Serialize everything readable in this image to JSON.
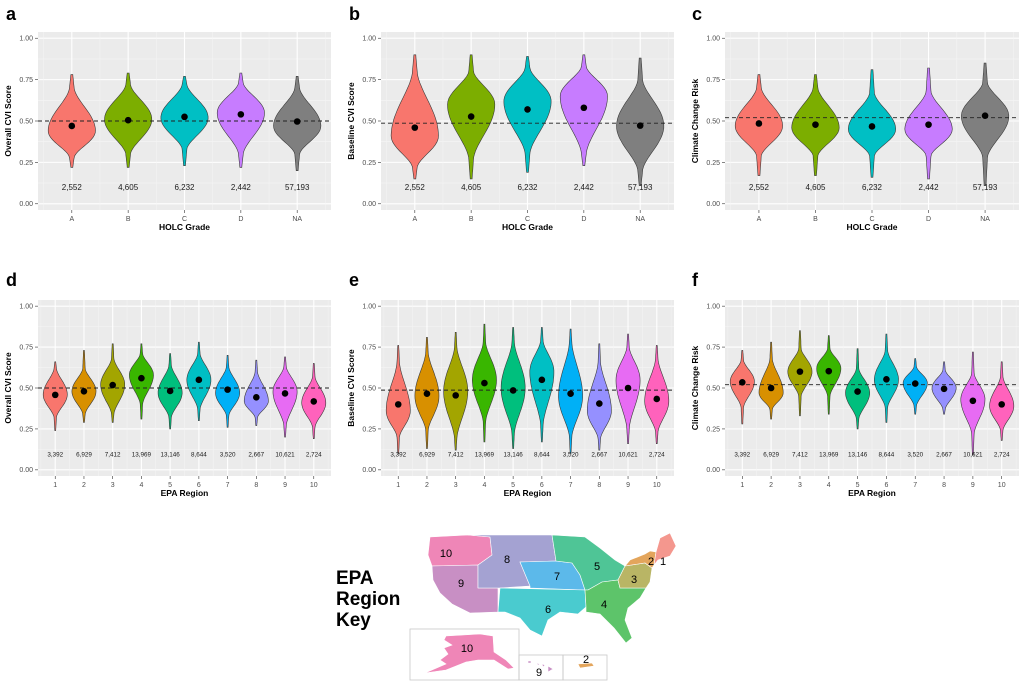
{
  "chart_data": [
    {
      "panel": "a",
      "type": "violin",
      "title": "",
      "xlabel": "HOLC Grade",
      "ylabel": "Overall CVI Score",
      "ylim": [
        0,
        1
      ],
      "yticks": [
        "0.00",
        "0.25",
        "0.50",
        "0.75",
        "1.00"
      ],
      "categories": [
        "A",
        "B",
        "C",
        "D",
        "NA"
      ],
      "colors": [
        "#F8766D",
        "#7CAE00",
        "#00BFC4",
        "#C77CFF",
        "#7F7F7F"
      ],
      "means": [
        0.47,
        0.505,
        0.525,
        0.54,
        0.497
      ],
      "ranges": [
        [
          0.22,
          0.78
        ],
        [
          0.22,
          0.79
        ],
        [
          0.23,
          0.77
        ],
        [
          0.22,
          0.79
        ],
        [
          0.2,
          0.77
        ]
      ],
      "body": [
        [
          0.28,
          0.7
        ],
        [
          0.3,
          0.72
        ],
        [
          0.33,
          0.72
        ],
        [
          0.3,
          0.73
        ],
        [
          0.3,
          0.7
        ]
      ],
      "modes": [
        0.44,
        0.51,
        0.52,
        0.55,
        0.47
      ],
      "counts": [
        "2,552",
        "4,605",
        "6,232",
        "2,442",
        "57,193"
      ],
      "reference_line": 0.5,
      "grid": true
    },
    {
      "panel": "b",
      "type": "violin",
      "xlabel": "HOLC Grade",
      "ylabel": "Baseline CVI Score",
      "ylim": [
        0,
        1
      ],
      "yticks": [
        "0.00",
        "0.25",
        "0.50",
        "0.75",
        "1.00"
      ],
      "categories": [
        "A",
        "B",
        "C",
        "D",
        "NA"
      ],
      "colors": [
        "#F8766D",
        "#7CAE00",
        "#00BFC4",
        "#C77CFF",
        "#7F7F7F"
      ],
      "means": [
        0.46,
        0.527,
        0.57,
        0.58,
        0.472
      ],
      "ranges": [
        [
          0.15,
          0.9
        ],
        [
          0.15,
          0.9
        ],
        [
          0.19,
          0.89
        ],
        [
          0.23,
          0.9
        ],
        [
          0.11,
          0.88
        ]
      ],
      "body": [
        [
          0.22,
          0.8
        ],
        [
          0.27,
          0.8
        ],
        [
          0.3,
          0.82
        ],
        [
          0.3,
          0.83
        ],
        [
          0.2,
          0.75
        ]
      ],
      "modes": [
        0.41,
        0.6,
        0.62,
        0.65,
        0.47
      ],
      "counts": [
        "2,552",
        "4,605",
        "6,232",
        "2,442",
        "57,193"
      ],
      "reference_line": 0.487,
      "grid": true
    },
    {
      "panel": "c",
      "type": "violin",
      "xlabel": "HOLC Grade",
      "ylabel": "Climate Change Risk",
      "ylim": [
        0,
        1
      ],
      "yticks": [
        "0.00",
        "0.25",
        "0.50",
        "0.75",
        "1.00"
      ],
      "categories": [
        "A",
        "B",
        "C",
        "D",
        "NA"
      ],
      "colors": [
        "#F8766D",
        "#7CAE00",
        "#00BFC4",
        "#C77CFF",
        "#7F7F7F"
      ],
      "means": [
        0.485,
        0.478,
        0.467,
        0.478,
        0.532
      ],
      "ranges": [
        [
          0.17,
          0.78
        ],
        [
          0.17,
          0.78
        ],
        [
          0.16,
          0.81
        ],
        [
          0.15,
          0.82
        ],
        [
          0.11,
          0.85
        ]
      ],
      "body": [
        [
          0.29,
          0.7
        ],
        [
          0.29,
          0.7
        ],
        [
          0.29,
          0.67
        ],
        [
          0.29,
          0.68
        ],
        [
          0.28,
          0.73
        ]
      ],
      "modes": [
        0.47,
        0.46,
        0.45,
        0.45,
        0.53
      ],
      "counts": [
        "2,552",
        "4,605",
        "6,232",
        "2,442",
        "57,193"
      ],
      "reference_line": 0.52,
      "grid": true
    },
    {
      "panel": "d",
      "type": "violin",
      "xlabel": "EPA Region",
      "ylabel": "Overall CVI Score",
      "ylim": [
        0,
        1
      ],
      "yticks": [
        "0.00",
        "0.25",
        "0.50",
        "0.75",
        "1.00"
      ],
      "categories": [
        "1",
        "2",
        "3",
        "4",
        "5",
        "6",
        "7",
        "8",
        "9",
        "10"
      ],
      "colors": [
        "#F8766D",
        "#D89000",
        "#A3A500",
        "#39B600",
        "#00BF7D",
        "#00BFC4",
        "#00B0F6",
        "#9590FF",
        "#E76BF3",
        "#FF62BC"
      ],
      "means": [
        0.458,
        0.48,
        0.518,
        0.56,
        0.482,
        0.55,
        0.49,
        0.443,
        0.467,
        0.418
      ],
      "ranges": [
        [
          0.24,
          0.66
        ],
        [
          0.29,
          0.73
        ],
        [
          0.29,
          0.77
        ],
        [
          0.31,
          0.77
        ],
        [
          0.25,
          0.71
        ],
        [
          0.3,
          0.78
        ],
        [
          0.26,
          0.7
        ],
        [
          0.27,
          0.67
        ],
        [
          0.2,
          0.69
        ],
        [
          0.19,
          0.65
        ]
      ],
      "body": [
        [
          0.32,
          0.62
        ],
        [
          0.34,
          0.62
        ],
        [
          0.34,
          0.68
        ],
        [
          0.4,
          0.71
        ],
        [
          0.32,
          0.64
        ],
        [
          0.37,
          0.71
        ],
        [
          0.33,
          0.63
        ],
        [
          0.32,
          0.6
        ],
        [
          0.27,
          0.63
        ],
        [
          0.26,
          0.57
        ]
      ],
      "modes": [
        0.46,
        0.48,
        0.52,
        0.58,
        0.47,
        0.55,
        0.47,
        0.42,
        0.48,
        0.41
      ],
      "counts": [
        "3,392",
        "6,929",
        "7,412",
        "13,969",
        "13,146",
        "8,644",
        "3,520",
        "2,667",
        "10,621",
        "2,724"
      ],
      "reference_line": 0.5,
      "grid": true
    },
    {
      "panel": "e",
      "type": "violin",
      "xlabel": "EPA Region",
      "ylabel": "Baseline CVI Score",
      "ylim": [
        0,
        1
      ],
      "yticks": [
        "0.00",
        "0.25",
        "0.50",
        "0.75",
        "1.00"
      ],
      "categories": [
        "1",
        "2",
        "3",
        "4",
        "5",
        "6",
        "7",
        "8",
        "9",
        "10"
      ],
      "colors": [
        "#F8766D",
        "#D89000",
        "#A3A500",
        "#39B600",
        "#00BF7D",
        "#00BFC4",
        "#00B0F6",
        "#9590FF",
        "#E76BF3",
        "#FF62BC"
      ],
      "means": [
        0.4,
        0.465,
        0.455,
        0.53,
        0.485,
        0.55,
        0.465,
        0.405,
        0.5,
        0.433
      ],
      "ranges": [
        [
          0.1,
          0.76
        ],
        [
          0.13,
          0.81
        ],
        [
          0.12,
          0.84
        ],
        [
          0.17,
          0.89
        ],
        [
          0.13,
          0.87
        ],
        [
          0.17,
          0.87
        ],
        [
          0.1,
          0.86
        ],
        [
          0.12,
          0.77
        ],
        [
          0.16,
          0.83
        ],
        [
          0.16,
          0.76
        ]
      ],
      "body": [
        [
          0.2,
          0.66
        ],
        [
          0.24,
          0.72
        ],
        [
          0.19,
          0.75
        ],
        [
          0.29,
          0.78
        ],
        [
          0.22,
          0.78
        ],
        [
          0.27,
          0.79
        ],
        [
          0.2,
          0.78
        ],
        [
          0.19,
          0.66
        ],
        [
          0.25,
          0.75
        ],
        [
          0.23,
          0.68
        ]
      ],
      "modes": [
        0.36,
        0.45,
        0.48,
        0.55,
        0.5,
        0.6,
        0.45,
        0.36,
        0.55,
        0.42
      ],
      "counts": [
        "3,392",
        "6,929",
        "7,412",
        "13,969",
        "13,146",
        "8,644",
        "3,520",
        "2,667",
        "10,621",
        "2,724"
      ],
      "reference_line": 0.487,
      "grid": true
    },
    {
      "panel": "f",
      "type": "violin",
      "xlabel": "EPA Region",
      "ylabel": "Climate Change Risk",
      "ylim": [
        0,
        1
      ],
      "yticks": [
        "0.00",
        "0.25",
        "0.50",
        "0.75",
        "1.00"
      ],
      "categories": [
        "1",
        "2",
        "3",
        "4",
        "5",
        "6",
        "7",
        "8",
        "9",
        "10"
      ],
      "colors": [
        "#F8766D",
        "#D89000",
        "#A3A500",
        "#39B600",
        "#00BF7D",
        "#00BFC4",
        "#00B0F6",
        "#9590FF",
        "#E76BF3",
        "#FF62BC"
      ],
      "means": [
        0.535,
        0.5,
        0.6,
        0.603,
        0.478,
        0.553,
        0.527,
        0.495,
        0.422,
        0.4
      ],
      "ranges": [
        [
          0.28,
          0.73
        ],
        [
          0.31,
          0.78
        ],
        [
          0.33,
          0.85
        ],
        [
          0.34,
          0.82
        ],
        [
          0.25,
          0.74
        ],
        [
          0.29,
          0.83
        ],
        [
          0.34,
          0.68
        ],
        [
          0.34,
          0.66
        ],
        [
          0.09,
          0.72
        ],
        [
          0.18,
          0.66
        ]
      ],
      "body": [
        [
          0.38,
          0.67
        ],
        [
          0.37,
          0.68
        ],
        [
          0.45,
          0.74
        ],
        [
          0.45,
          0.74
        ],
        [
          0.31,
          0.62
        ],
        [
          0.38,
          0.73
        ],
        [
          0.39,
          0.63
        ],
        [
          0.37,
          0.61
        ],
        [
          0.22,
          0.59
        ],
        [
          0.24,
          0.57
        ]
      ],
      "modes": [
        0.54,
        0.47,
        0.6,
        0.62,
        0.47,
        0.55,
        0.53,
        0.5,
        0.43,
        0.39
      ],
      "counts": [
        "3,392",
        "6,929",
        "7,412",
        "13,969",
        "13,146",
        "8,644",
        "3,520",
        "2,667",
        "10,621",
        "2,724"
      ],
      "reference_line": 0.52,
      "grid": true
    }
  ],
  "map": {
    "title_lines": [
      "EPA",
      "Region",
      "Key"
    ],
    "regions": [
      {
        "id": "1",
        "color": "#F4978E"
      },
      {
        "id": "2",
        "color": "#E3A55C"
      },
      {
        "id": "3",
        "color": "#B9B565"
      },
      {
        "id": "4",
        "color": "#5DC46A"
      },
      {
        "id": "5",
        "color": "#4FC596"
      },
      {
        "id": "6",
        "color": "#4ACBCF"
      },
      {
        "id": "7",
        "color": "#5CB9EA"
      },
      {
        "id": "8",
        "color": "#A4A2D2"
      },
      {
        "id": "9",
        "color": "#C88FC4"
      },
      {
        "id": "10",
        "color": "#EF86B7"
      }
    ],
    "insets": [
      {
        "name": "alaska",
        "label": "10"
      },
      {
        "name": "hawaii",
        "label": "9"
      },
      {
        "name": "puerto-rico",
        "label": "2"
      }
    ]
  }
}
